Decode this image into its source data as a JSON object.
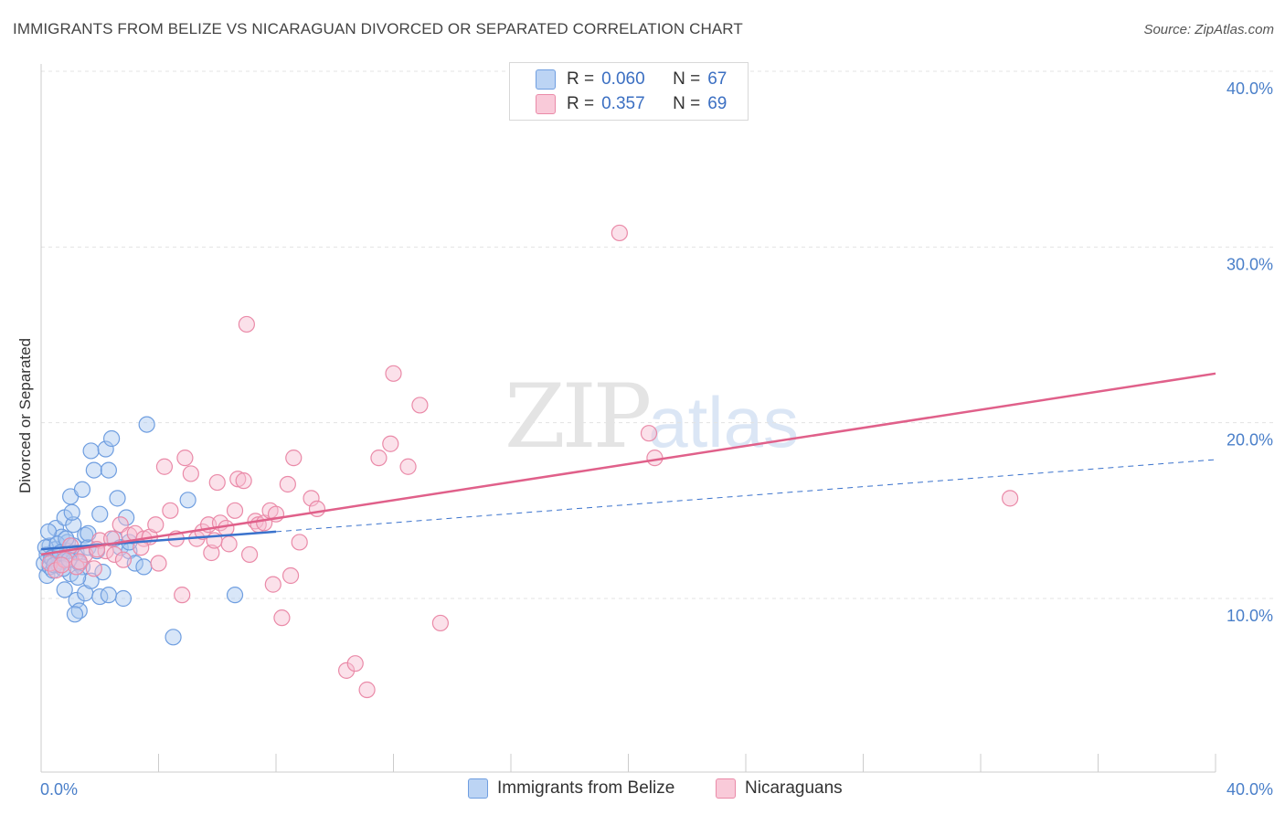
{
  "title": "IMMIGRANTS FROM BELIZE VS NICARAGUAN DIVORCED OR SEPARATED CORRELATION CHART",
  "source": "Source: ZipAtlas.com",
  "watermark": {
    "zip": "ZIP",
    "atlas": "atlas"
  },
  "legend": {
    "rows": [
      {
        "r_label": "R =",
        "r_value": "0.060",
        "n_label": "N =",
        "n_value": "67"
      },
      {
        "r_label": "R =",
        "r_value": "0.357",
        "n_label": "N =",
        "n_value": "69"
      }
    ]
  },
  "bottom_legend": [
    "Immigrants from Belize",
    "Nicaraguans"
  ],
  "colors": {
    "belize_fill": "#a9c7f0",
    "belize_stroke": "#6f9ee0",
    "belize_line": "#3a72cc",
    "nic_fill": "#f7bcd0",
    "nic_stroke": "#ea8aa8",
    "nic_line": "#e0608a",
    "tick": "#4a7fc9"
  },
  "chart_data": {
    "type": "scatter",
    "title": "IMMIGRANTS FROM BELIZE VS NICARAGUAN DIVORCED OR SEPARATED CORRELATION CHART",
    "xlabel": "",
    "ylabel": "Divorced or Separated",
    "xlim": [
      0,
      40
    ],
    "ylim": [
      0,
      42
    ],
    "x_tick_labels": [
      "0.0%",
      "40.0%"
    ],
    "y_ticks": [
      10,
      20,
      30,
      40
    ],
    "y_tick_labels": [
      "10.0%",
      "20.0%",
      "30.0%",
      "40.0%"
    ],
    "grid": true,
    "legend_position": "top-center",
    "series": [
      {
        "name": "Immigrants from Belize",
        "r": 0.06,
        "n": 67,
        "trend": {
          "x": [
            0,
            8.0
          ],
          "y": [
            12.8,
            13.8
          ],
          "dashed_extension": {
            "x": [
              8.0,
              40
            ],
            "y": [
              13.8,
              17.9
            ]
          }
        },
        "points": [
          [
            0.1,
            12.0
          ],
          [
            0.2,
            11.3
          ],
          [
            0.2,
            12.5
          ],
          [
            0.3,
            11.8
          ],
          [
            0.3,
            13.0
          ],
          [
            0.4,
            12.2
          ],
          [
            0.4,
            11.6
          ],
          [
            0.5,
            12.8
          ],
          [
            0.5,
            14.0
          ],
          [
            0.6,
            12.4
          ],
          [
            0.6,
            11.9
          ],
          [
            0.7,
            13.5
          ],
          [
            0.7,
            12.1
          ],
          [
            0.8,
            14.6
          ],
          [
            0.8,
            10.5
          ],
          [
            0.9,
            13.2
          ],
          [
            0.9,
            12.7
          ],
          [
            1.0,
            15.8
          ],
          [
            1.0,
            11.4
          ],
          [
            1.1,
            14.2
          ],
          [
            1.1,
            13.0
          ],
          [
            1.2,
            12.6
          ],
          [
            1.2,
            9.9
          ],
          [
            1.3,
            9.3
          ],
          [
            1.3,
            12.0
          ],
          [
            1.4,
            16.2
          ],
          [
            1.4,
            11.8
          ],
          [
            1.5,
            13.6
          ],
          [
            1.5,
            10.3
          ],
          [
            1.6,
            12.9
          ],
          [
            1.7,
            11.0
          ],
          [
            1.7,
            18.4
          ],
          [
            1.8,
            17.3
          ],
          [
            1.9,
            12.7
          ],
          [
            2.0,
            14.8
          ],
          [
            2.0,
            10.1
          ],
          [
            2.1,
            11.5
          ],
          [
            2.2,
            18.5
          ],
          [
            2.3,
            17.3
          ],
          [
            2.4,
            19.1
          ],
          [
            2.5,
            13.4
          ],
          [
            2.6,
            15.7
          ],
          [
            2.7,
            12.9
          ],
          [
            2.9,
            14.6
          ],
          [
            3.0,
            12.7
          ],
          [
            3.2,
            12.0
          ],
          [
            3.5,
            11.8
          ],
          [
            3.0,
            13.2
          ],
          [
            0.15,
            12.9
          ],
          [
            0.25,
            13.8
          ],
          [
            0.35,
            12.3
          ],
          [
            0.45,
            11.9
          ],
          [
            0.55,
            13.1
          ],
          [
            0.65,
            12.6
          ],
          [
            0.75,
            11.7
          ],
          [
            0.85,
            13.4
          ],
          [
            0.95,
            12.2
          ],
          [
            1.05,
            14.9
          ],
          [
            1.15,
            9.1
          ],
          [
            1.25,
            11.2
          ],
          [
            2.8,
            10.0
          ],
          [
            2.3,
            10.2
          ],
          [
            3.6,
            19.9
          ],
          [
            4.5,
            7.8
          ],
          [
            5.0,
            15.6
          ],
          [
            6.6,
            10.2
          ],
          [
            1.6,
            13.7
          ]
        ]
      },
      {
        "name": "Nicaraguans",
        "r": 0.357,
        "n": 69,
        "trend": {
          "x": [
            0,
            40
          ],
          "y": [
            12.5,
            22.8
          ]
        },
        "points": [
          [
            0.3,
            12.0
          ],
          [
            0.5,
            11.6
          ],
          [
            0.8,
            12.2
          ],
          [
            1.0,
            13.0
          ],
          [
            1.2,
            11.8
          ],
          [
            1.5,
            12.5
          ],
          [
            1.8,
            11.7
          ],
          [
            2.0,
            13.3
          ],
          [
            2.2,
            12.7
          ],
          [
            2.5,
            12.5
          ],
          [
            2.7,
            14.2
          ],
          [
            2.8,
            12.2
          ],
          [
            3.0,
            13.6
          ],
          [
            3.2,
            13.7
          ],
          [
            3.5,
            13.4
          ],
          [
            3.7,
            13.5
          ],
          [
            3.9,
            14.2
          ],
          [
            4.0,
            12.0
          ],
          [
            4.2,
            17.5
          ],
          [
            4.4,
            15.0
          ],
          [
            4.6,
            13.4
          ],
          [
            4.8,
            10.2
          ],
          [
            4.9,
            18.0
          ],
          [
            5.1,
            17.1
          ],
          [
            5.3,
            13.4
          ],
          [
            5.5,
            13.8
          ],
          [
            5.7,
            14.2
          ],
          [
            5.8,
            12.6
          ],
          [
            6.0,
            16.6
          ],
          [
            6.1,
            14.3
          ],
          [
            6.3,
            14.0
          ],
          [
            6.4,
            13.1
          ],
          [
            6.6,
            15.0
          ],
          [
            6.7,
            16.8
          ],
          [
            6.9,
            16.7
          ],
          [
            7.0,
            25.6
          ],
          [
            7.1,
            12.5
          ],
          [
            7.3,
            14.4
          ],
          [
            7.4,
            14.2
          ],
          [
            7.6,
            14.3
          ],
          [
            7.8,
            15.0
          ],
          [
            7.9,
            10.8
          ],
          [
            8.0,
            14.8
          ],
          [
            8.2,
            8.9
          ],
          [
            8.4,
            16.5
          ],
          [
            8.5,
            11.3
          ],
          [
            8.6,
            18.0
          ],
          [
            8.8,
            13.2
          ],
          [
            9.2,
            15.7
          ],
          [
            9.4,
            15.1
          ],
          [
            10.4,
            5.9
          ],
          [
            10.7,
            6.3
          ],
          [
            11.1,
            4.8
          ],
          [
            11.5,
            18.0
          ],
          [
            11.9,
            18.8
          ],
          [
            12.0,
            22.8
          ],
          [
            12.5,
            17.5
          ],
          [
            12.9,
            21.0
          ],
          [
            13.6,
            8.6
          ],
          [
            19.7,
            30.8
          ],
          [
            20.7,
            19.4
          ],
          [
            20.9,
            18.0
          ],
          [
            33.0,
            15.7
          ],
          [
            2.4,
            13.4
          ],
          [
            1.3,
            12.1
          ],
          [
            3.4,
            12.9
          ],
          [
            5.9,
            13.3
          ],
          [
            0.7,
            11.9
          ],
          [
            1.9,
            12.8
          ]
        ]
      }
    ]
  }
}
